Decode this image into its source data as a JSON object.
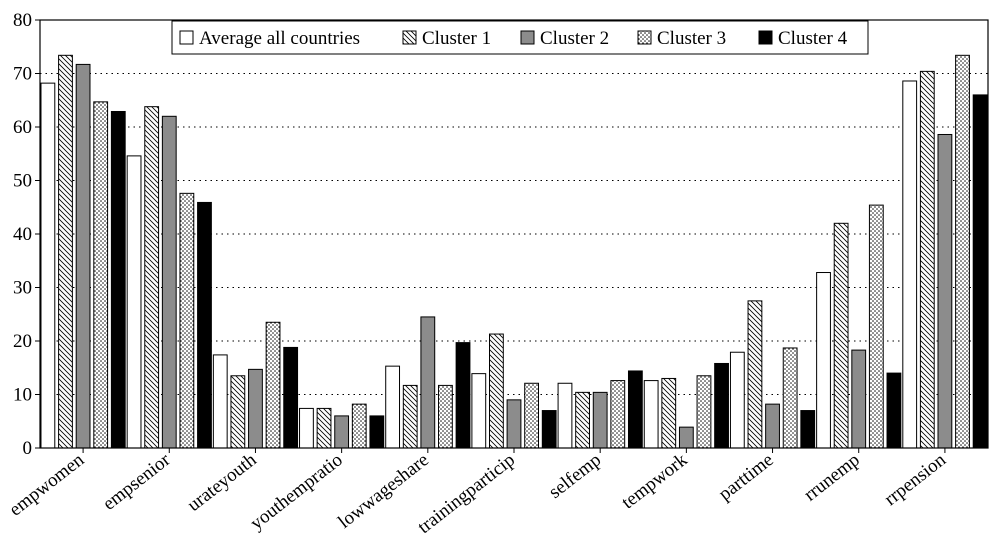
{
  "chart_data": {
    "type": "bar",
    "title": "",
    "xlabel": "",
    "ylabel": "",
    "ylim": [
      0,
      80
    ],
    "yticks": [
      0,
      10,
      20,
      30,
      40,
      50,
      60,
      70,
      80
    ],
    "grid": "horizontal-dotted",
    "legend_position": "top",
    "categories": [
      "empwomen",
      "empsenior",
      "urateyouth",
      "youthempratio",
      "lowwageshare",
      "trainingparticip",
      "selfemp",
      "tempwork",
      "parttime",
      "rrunemp",
      "rrpension"
    ],
    "series": [
      {
        "name": "Average all countries",
        "pattern": "white",
        "values": [
          68.2,
          54.6,
          17.4,
          7.4,
          15.3,
          13.9,
          12.1,
          12.6,
          17.9,
          32.8,
          68.6
        ]
      },
      {
        "name": "Cluster 1",
        "pattern": "hatched",
        "values": [
          73.4,
          63.8,
          13.5,
          7.4,
          11.7,
          21.3,
          10.4,
          13.0,
          27.5,
          42.0,
          70.4
        ]
      },
      {
        "name": "Cluster 2",
        "pattern": "gray",
        "values": [
          71.7,
          62.0,
          14.7,
          6.0,
          24.5,
          9.0,
          10.4,
          3.9,
          8.2,
          18.3,
          58.6
        ]
      },
      {
        "name": "Cluster 3",
        "pattern": "dotted",
        "values": [
          64.7,
          47.6,
          23.5,
          8.2,
          11.7,
          12.1,
          12.6,
          13.5,
          18.7,
          45.4,
          73.4
        ]
      },
      {
        "name": "Cluster 4",
        "pattern": "black",
        "values": [
          62.9,
          45.9,
          18.8,
          6.0,
          19.7,
          7.0,
          14.4,
          15.8,
          7.0,
          14.0,
          66.0
        ]
      }
    ],
    "colors": {
      "gray": "#8c8c8c",
      "black": "#000000",
      "white": "#ffffff"
    }
  }
}
